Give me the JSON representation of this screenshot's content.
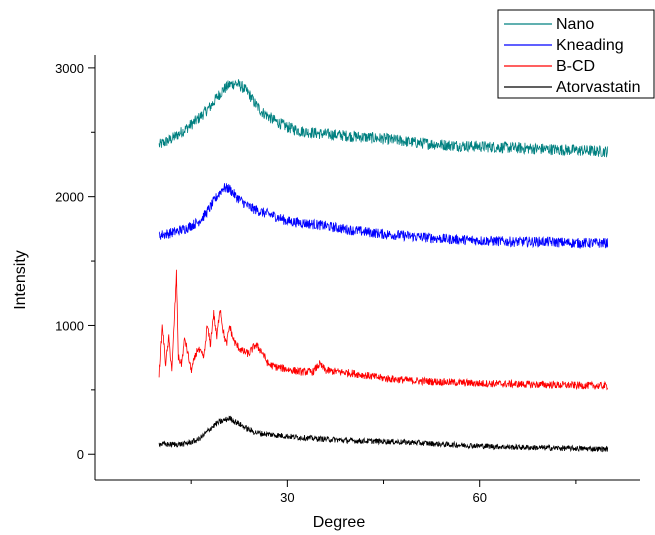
{
  "chart_data": {
    "type": "line",
    "xlabel": "Degree",
    "ylabel": "Intensity",
    "xlim": [
      0,
      85
    ],
    "ylim": [
      -200,
      3100
    ],
    "xticks": [
      30,
      60
    ],
    "xticks_minor": [
      15,
      45,
      75
    ],
    "yticks": [
      0,
      1000,
      2000,
      3000
    ],
    "legend_position": "top-right",
    "grid": false,
    "series": [
      {
        "name": "Nano",
        "color": "#008080",
        "x": [
          10,
          12,
          14,
          16,
          18,
          19,
          20,
          21,
          22,
          23,
          24,
          25,
          26,
          28,
          30,
          32,
          35,
          40,
          45,
          50,
          55,
          60,
          65,
          70,
          75,
          80
        ],
        "y": [
          2400,
          2450,
          2520,
          2600,
          2700,
          2770,
          2830,
          2870,
          2880,
          2850,
          2800,
          2720,
          2660,
          2590,
          2540,
          2510,
          2490,
          2470,
          2450,
          2420,
          2400,
          2390,
          2380,
          2370,
          2360,
          2350
        ]
      },
      {
        "name": "Kneading",
        "color": "#0000ff",
        "x": [
          10,
          12,
          14,
          16,
          17,
          18,
          19,
          20,
          21,
          22,
          23,
          24,
          26,
          28,
          30,
          35,
          40,
          45,
          50,
          55,
          60,
          65,
          70,
          75,
          80
        ],
        "y": [
          1700,
          1720,
          1750,
          1800,
          1850,
          1920,
          2000,
          2070,
          2060,
          2000,
          1960,
          1920,
          1880,
          1850,
          1810,
          1780,
          1740,
          1710,
          1690,
          1670,
          1660,
          1650,
          1650,
          1640,
          1640
        ]
      },
      {
        "name": "B-CD",
        "color": "#ff0000",
        "x": [
          10,
          10.5,
          11,
          11.5,
          12,
          12.7,
          13,
          13.5,
          14,
          15,
          16,
          17,
          17.5,
          18,
          18.5,
          19,
          19.5,
          20,
          20.5,
          21,
          21.5,
          22,
          23,
          24,
          25,
          26,
          27,
          28,
          30,
          32,
          34,
          35,
          36,
          38,
          40,
          45,
          50,
          55,
          60,
          65,
          70,
          75,
          80
        ],
        "y": [
          620,
          1000,
          700,
          900,
          650,
          1400,
          750,
          700,
          900,
          650,
          820,
          750,
          1000,
          850,
          1100,
          900,
          1150,
          950,
          850,
          1000,
          900,
          850,
          800,
          780,
          850,
          800,
          700,
          680,
          660,
          640,
          640,
          700,
          650,
          640,
          630,
          590,
          570,
          560,
          550,
          545,
          540,
          535,
          530
        ]
      },
      {
        "name": "Atorvastatin",
        "color": "#000000",
        "x": [
          10,
          12,
          14,
          16,
          17,
          18,
          19,
          20,
          21,
          22,
          23,
          24,
          25,
          26,
          28,
          30,
          32,
          35,
          40,
          45,
          50,
          55,
          60,
          65,
          70,
          75,
          80
        ],
        "y": [
          80,
          75,
          80,
          110,
          150,
          200,
          240,
          260,
          280,
          250,
          220,
          190,
          170,
          160,
          150,
          140,
          130,
          120,
          105,
          100,
          90,
          75,
          65,
          55,
          50,
          45,
          40
        ]
      }
    ]
  }
}
